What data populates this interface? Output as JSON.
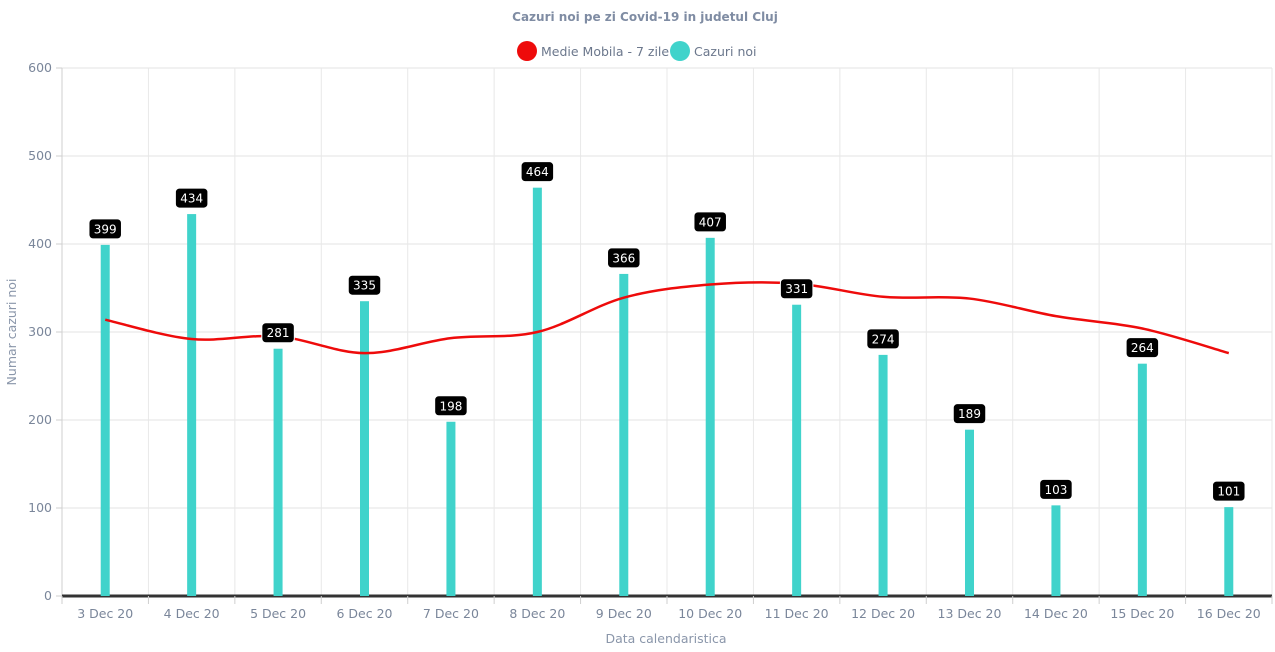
{
  "chart_data": {
    "type": "bar",
    "title": "Cazuri noi pe zi Covid-19 in judetul Cluj",
    "xlabel": "Data calendaristica",
    "ylabel": "Numar cazuri noi",
    "ylim": [
      0,
      600
    ],
    "yticks": [
      0,
      100,
      200,
      300,
      400,
      500,
      600
    ],
    "grid": true,
    "legend_position": "top-center",
    "categories": [
      "3 Dec 20",
      "4 Dec 20",
      "5 Dec 20",
      "6 Dec 20",
      "7 Dec 20",
      "8 Dec 20",
      "9 Dec 20",
      "10 Dec 20",
      "11 Dec 20",
      "12 Dec 20",
      "13 Dec 20",
      "14 Dec 20",
      "15 Dec 20",
      "16 Dec 20"
    ],
    "series": [
      {
        "name": "Medie Mobila - 7 zile",
        "type": "line",
        "color": "#ee0b0b",
        "values": [
          314,
          292,
          295,
          276,
          293,
          300,
          339,
          354,
          355,
          340,
          338,
          318,
          304,
          276
        ]
      },
      {
        "name": "Cazuri noi",
        "type": "bar",
        "color": "#40d3cb",
        "values": [
          399,
          434,
          281,
          335,
          198,
          464,
          366,
          407,
          331,
          274,
          189,
          103,
          264,
          101
        ],
        "data_labels": true
      }
    ]
  }
}
